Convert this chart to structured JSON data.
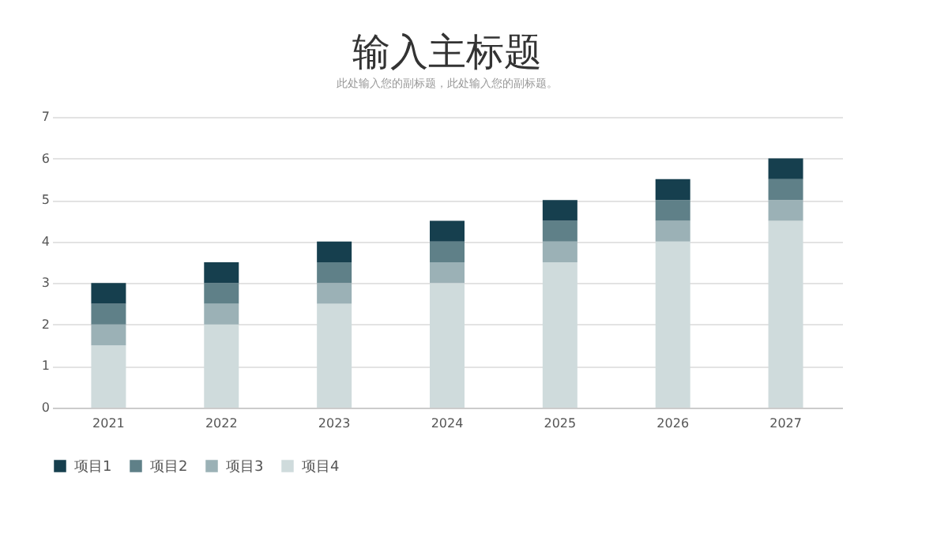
{
  "chart_data": {
    "type": "bar",
    "title": "输入主标题",
    "subtitle": "此处输入您的副标题，此处输入您的副标题。",
    "stacked": true,
    "categories": [
      "2021",
      "2022",
      "2023",
      "2024",
      "2025",
      "2026",
      "2027"
    ],
    "series": [
      {
        "name": "项目4",
        "color": "#cfdbdc",
        "values": [
          1.5,
          2,
          2.5,
          3,
          3.5,
          4,
          4.5
        ]
      },
      {
        "name": "项目3",
        "color": "#9bb1b6",
        "values": [
          0.5,
          0.5,
          0.5,
          0.5,
          0.5,
          0.5,
          0.5
        ]
      },
      {
        "name": "项目2",
        "color": "#5f8088",
        "values": [
          0.5,
          0.5,
          0.5,
          0.5,
          0.5,
          0.5,
          0.5
        ]
      },
      {
        "name": "项目1",
        "color": "#163f4e",
        "values": [
          0.5,
          0.5,
          0.5,
          0.5,
          0.5,
          0.5,
          0.5
        ]
      }
    ],
    "ylim": [
      0,
      7
    ],
    "yticks": [
      0,
      1,
      2,
      3,
      4,
      5,
      6,
      7
    ],
    "grid": "y",
    "legend": "bottom"
  }
}
